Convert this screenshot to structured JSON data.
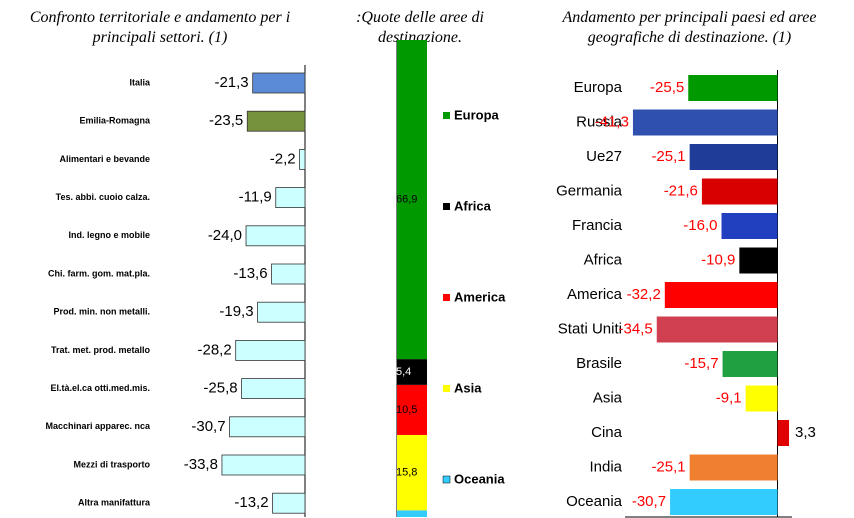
{
  "chart_data": [
    {
      "type": "hbar",
      "title": "Confronto territoriale e andamento per i principali settori. (1)",
      "categories": [
        "Italia",
        "Emilia-Romagna",
        "Alimentari e bevande",
        "Tes. abbi. cuoio calza.",
        "Ind. legno e mobile",
        "Chi. farm. gom. mat.pla.",
        "Prod. min. non metalli.",
        "Trat. met. prod. metallo",
        "El.tà.el.ca otti.med.mis.",
        "Macchinari apparec. nca",
        "Mezzi di trasporto",
        "Altra manifattura"
      ],
      "values": [
        -21.3,
        -23.5,
        -2.2,
        -11.9,
        -24.0,
        -13.6,
        -19.3,
        -28.2,
        -25.8,
        -30.7,
        -33.8,
        -13.2
      ],
      "value_labels": [
        "-21,3",
        "-23,5",
        "-2,2",
        "-11,9",
        "-24,0",
        "-13,6",
        "-19,3",
        "-28,2",
        "-25,8",
        "-30,7",
        "-33,8",
        "-13,2"
      ],
      "colors": [
        "#5b8bd6",
        "#76923c",
        "#ccffff",
        "#ccffff",
        "#ccffff",
        "#ccffff",
        "#ccffff",
        "#ccffff",
        "#ccffff",
        "#ccffff",
        "#ccffff",
        "#ccffff"
      ],
      "xlim": [
        -35,
        0
      ]
    },
    {
      "type": "stacked_bar",
      "title": ":Quote delle aree di destinazione.",
      "series": [
        {
          "name": "Europa",
          "color": "#009900",
          "values": [
            66.9
          ],
          "value_labels": [
            "66,9"
          ]
        },
        {
          "name": "Africa",
          "color": "#000000",
          "values": [
            5.4
          ],
          "value_labels": [
            "5,4"
          ]
        },
        {
          "name": "America",
          "color": "#ff0000",
          "values": [
            10.5
          ],
          "value_labels": [
            "10,5"
          ]
        },
        {
          "name": "Asia",
          "color": "#ffff00",
          "values": [
            15.8
          ],
          "value_labels": [
            "15,8"
          ]
        },
        {
          "name": "Oceania",
          "color": "#33ccff",
          "values": [
            1.4
          ]
        }
      ],
      "ylim": [
        0,
        100
      ]
    },
    {
      "type": "hbar",
      "title": "Andamento per principali paesi ed aree geografiche di destinazione. (1)",
      "categories": [
        "Europa",
        "Russia",
        "Ue27",
        "Germania",
        "Francia",
        "Africa",
        "America",
        "Stati Uniti",
        "Brasile",
        "Asia",
        "Cina",
        "India",
        "Oceania"
      ],
      "values": [
        -25.5,
        -41.3,
        -25.1,
        -21.6,
        -16.0,
        -10.9,
        -32.2,
        -34.5,
        -15.7,
        -9.1,
        3.3,
        -25.1,
        -30.7
      ],
      "value_labels": [
        "-25,5",
        "-41,3",
        "-25,1",
        "-21,6",
        "-16,0",
        "-10,9",
        "-32,2",
        "-34,5",
        "-15,7",
        "-9,1",
        "3,3",
        "-25,1",
        "-30,7"
      ],
      "colors": [
        "#009900",
        "#3050b0",
        "#1f3c99",
        "#d80000",
        "#2040c0",
        "#000000",
        "#ff0000",
        "#d04050",
        "#20a040",
        "#ffff00",
        "#e00000",
        "#f08030",
        "#33ccff"
      ],
      "xlim": [
        -45,
        5
      ]
    }
  ]
}
